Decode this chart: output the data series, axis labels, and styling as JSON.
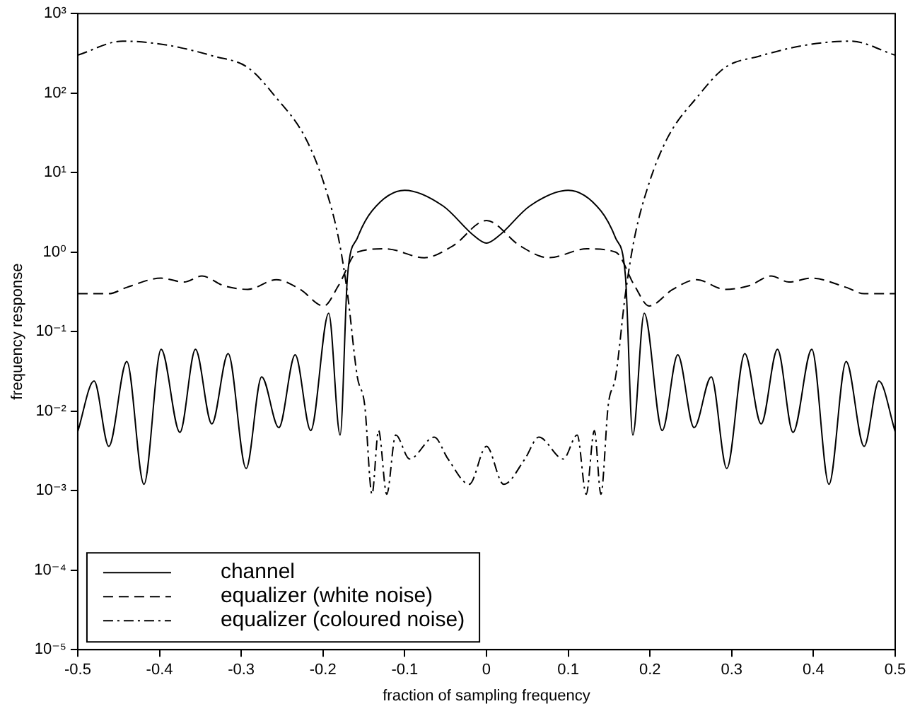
{
  "chart_data": {
    "type": "line",
    "xlabel": "fraction of sampling frequency",
    "ylabel": "frequency response",
    "log": "y",
    "grid": false,
    "legend": "bottom left",
    "marker": "none",
    "xlim": [
      -0.5,
      0.5
    ],
    "xticks": [
      -0.5,
      -0.4,
      -0.3,
      -0.2,
      -0.1,
      0,
      0.1,
      0.2,
      0.3,
      0.4,
      0.5
    ],
    "ylim": [
      1e-05,
      1000
    ],
    "yticks": [
      {
        "value": 1e-05,
        "label": "10⁻⁵"
      },
      {
        "value": 0.0001,
        "label": "10⁻⁴"
      },
      {
        "value": 0.001,
        "label": "10⁻³"
      },
      {
        "value": 0.01,
        "label": "10⁻²"
      },
      {
        "value": 0.1,
        "label": "10⁻¹"
      },
      {
        "value": 1,
        "label": "10⁰"
      },
      {
        "value": 10,
        "label": "10¹"
      },
      {
        "value": 100,
        "label": "10²"
      },
      {
        "value": 1000,
        "label": "10³"
      }
    ],
    "series": [
      {
        "name": "channel",
        "color": "#000000",
        "line_style": "solid",
        "x": [
          -0.5,
          -0.48,
          -0.462,
          -0.44,
          -0.419,
          -0.398,
          -0.375,
          -0.356,
          -0.336,
          -0.316,
          -0.294,
          -0.275,
          -0.254,
          -0.234,
          -0.215,
          -0.193,
          -0.179,
          -0.17,
          -0.158,
          -0.14,
          -0.1,
          -0.053,
          -0.015,
          0,
          0.015,
          0.053,
          0.1,
          0.14,
          0.158,
          0.17,
          0.179,
          0.193,
          0.215,
          0.234,
          0.254,
          0.275,
          0.294,
          0.316,
          0.336,
          0.356,
          0.375,
          0.398,
          0.419,
          0.44,
          0.462,
          0.48,
          0.5
        ],
        "values": [
          0.0055,
          0.024,
          0.0036,
          0.042,
          0.0012,
          0.06,
          0.0054,
          0.06,
          0.0069,
          0.053,
          0.0019,
          0.027,
          0.0062,
          0.051,
          0.0057,
          0.17,
          0.005,
          0.5,
          1.5,
          3.3,
          6,
          3.8,
          1.6,
          1.3,
          1.6,
          3.8,
          6,
          3.3,
          1.5,
          0.5,
          0.005,
          0.17,
          0.0057,
          0.051,
          0.0062,
          0.027,
          0.0019,
          0.053,
          0.0069,
          0.06,
          0.0054,
          0.06,
          0.0012,
          0.042,
          0.0036,
          0.024,
          0.0055
        ]
      },
      {
        "name": "equalizer (white noise)",
        "color": "#000000",
        "line_style": "dashed",
        "x": [
          -0.5,
          -0.462,
          -0.44,
          -0.398,
          -0.37,
          -0.348,
          -0.322,
          -0.292,
          -0.257,
          -0.228,
          -0.199,
          -0.181,
          -0.158,
          -0.123,
          -0.076,
          -0.041,
          0,
          0.041,
          0.076,
          0.123,
          0.158,
          0.181,
          0.199,
          0.228,
          0.257,
          0.292,
          0.322,
          0.348,
          0.37,
          0.398,
          0.44,
          0.462,
          0.5
        ],
        "values": [
          0.3,
          0.3,
          0.36,
          0.47,
          0.42,
          0.5,
          0.38,
          0.34,
          0.45,
          0.34,
          0.21,
          0.38,
          1,
          1.1,
          0.85,
          1.2,
          2.5,
          1.2,
          0.85,
          1.1,
          1,
          0.38,
          0.21,
          0.34,
          0.45,
          0.34,
          0.38,
          0.5,
          0.42,
          0.47,
          0.36,
          0.3,
          0.3
        ]
      },
      {
        "name": "equalizer (coloured noise)",
        "color": "#000000",
        "line_style": "dashdot",
        "x": [
          -0.5,
          -0.445,
          -0.39,
          -0.333,
          -0.292,
          -0.257,
          -0.222,
          -0.199,
          -0.181,
          -0.17,
          -0.158,
          -0.149,
          -0.14,
          -0.132,
          -0.122,
          -0.111,
          -0.094,
          -0.064,
          -0.047,
          -0.021,
          0,
          0.021,
          0.047,
          0.064,
          0.094,
          0.111,
          0.122,
          0.132,
          0.14,
          0.149,
          0.158,
          0.17,
          0.181,
          0.199,
          0.222,
          0.257,
          0.292,
          0.333,
          0.39,
          0.445,
          0.5
        ],
        "values": [
          300,
          450,
          400,
          290,
          210,
          87,
          28,
          7.4,
          1.5,
          0.3,
          0.027,
          0.012,
          0.0009,
          0.0057,
          0.0009,
          0.005,
          0.0025,
          0.0047,
          0.0025,
          0.0012,
          0.0036,
          0.0012,
          0.0025,
          0.0047,
          0.0025,
          0.005,
          0.0009,
          0.0057,
          0.0009,
          0.012,
          0.027,
          0.3,
          1.5,
          7.4,
          28,
          87,
          210,
          290,
          400,
          450,
          300
        ]
      }
    ]
  }
}
